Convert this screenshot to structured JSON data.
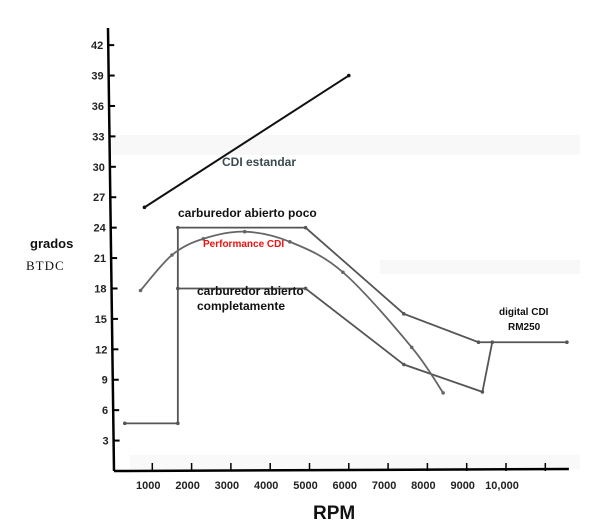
{
  "chart_data": {
    "type": "line",
    "title": "",
    "xlabel": "RPM",
    "ylabel": [
      "grados",
      "BTDC"
    ],
    "xlim": [
      0,
      11600
    ],
    "ylim": [
      0,
      43
    ],
    "grid": false,
    "y_ticks": [
      3,
      6,
      9,
      12,
      15,
      18,
      21,
      24,
      27,
      30,
      33,
      36,
      39,
      42
    ],
    "x_ticks": [
      {
        "value": 1000,
        "label": "1000"
      },
      {
        "value": 2000,
        "label": "2000"
      },
      {
        "value": 3000,
        "label": "3000"
      },
      {
        "value": 4000,
        "label": "4000"
      },
      {
        "value": 5000,
        "label": "5000"
      },
      {
        "value": 6000,
        "label": "6000"
      },
      {
        "value": 7000,
        "label": "7000"
      },
      {
        "value": 8000,
        "label": "8000"
      },
      {
        "value": 9000,
        "label": "9000"
      },
      {
        "value": 10000,
        "label": "10,000"
      },
      {
        "value": 11000,
        "label": ""
      }
    ],
    "series": [
      {
        "name": "CDI estandar",
        "color": "#111111",
        "label_color": "#3a4a50",
        "points": [
          [
            800,
            26
          ],
          [
            6000,
            39
          ]
        ]
      },
      {
        "name": "carburedor abierto poco",
        "color": "#555555",
        "label_color": "#111111",
        "points": [
          [
            300,
            4.7
          ],
          [
            1650,
            4.7
          ],
          [
            1650,
            24
          ],
          [
            4900,
            24
          ],
          [
            7400,
            15.5
          ],
          [
            9300,
            12.7
          ],
          [
            11550,
            12.7
          ]
        ]
      },
      {
        "name": "carburedor abierto completamente",
        "color": "#555555",
        "label_color": "#111111",
        "points": [
          [
            1650,
            18
          ],
          [
            4900,
            18
          ],
          [
            7400,
            10.5
          ],
          [
            9400,
            7.8
          ],
          [
            9650,
            12.7
          ]
        ]
      },
      {
        "name": "Performance CDI",
        "color": "#666666",
        "label_color": "#ee1111",
        "smooth": true,
        "points": [
          [
            700,
            17.8
          ],
          [
            1500,
            21.3
          ],
          [
            2300,
            22.9
          ],
          [
            3350,
            23.6
          ],
          [
            4500,
            22.6
          ],
          [
            5850,
            19.6
          ],
          [
            7600,
            12.2
          ],
          [
            8400,
            7.7
          ]
        ]
      },
      {
        "name": "digital CDI RM250",
        "color": "#555555",
        "label_color": "#111111",
        "note": "shares carburedor lines above 9000 RPM",
        "points": []
      }
    ],
    "labels": {
      "cdi_estandar": "CDI estandar",
      "poco": "carburedor abierto poco",
      "completo_1": "carburedor abierto",
      "completo_2": "completamente",
      "performance": "Performance CDI",
      "digital_1": "digital CDI",
      "digital_2": "RM250"
    }
  }
}
